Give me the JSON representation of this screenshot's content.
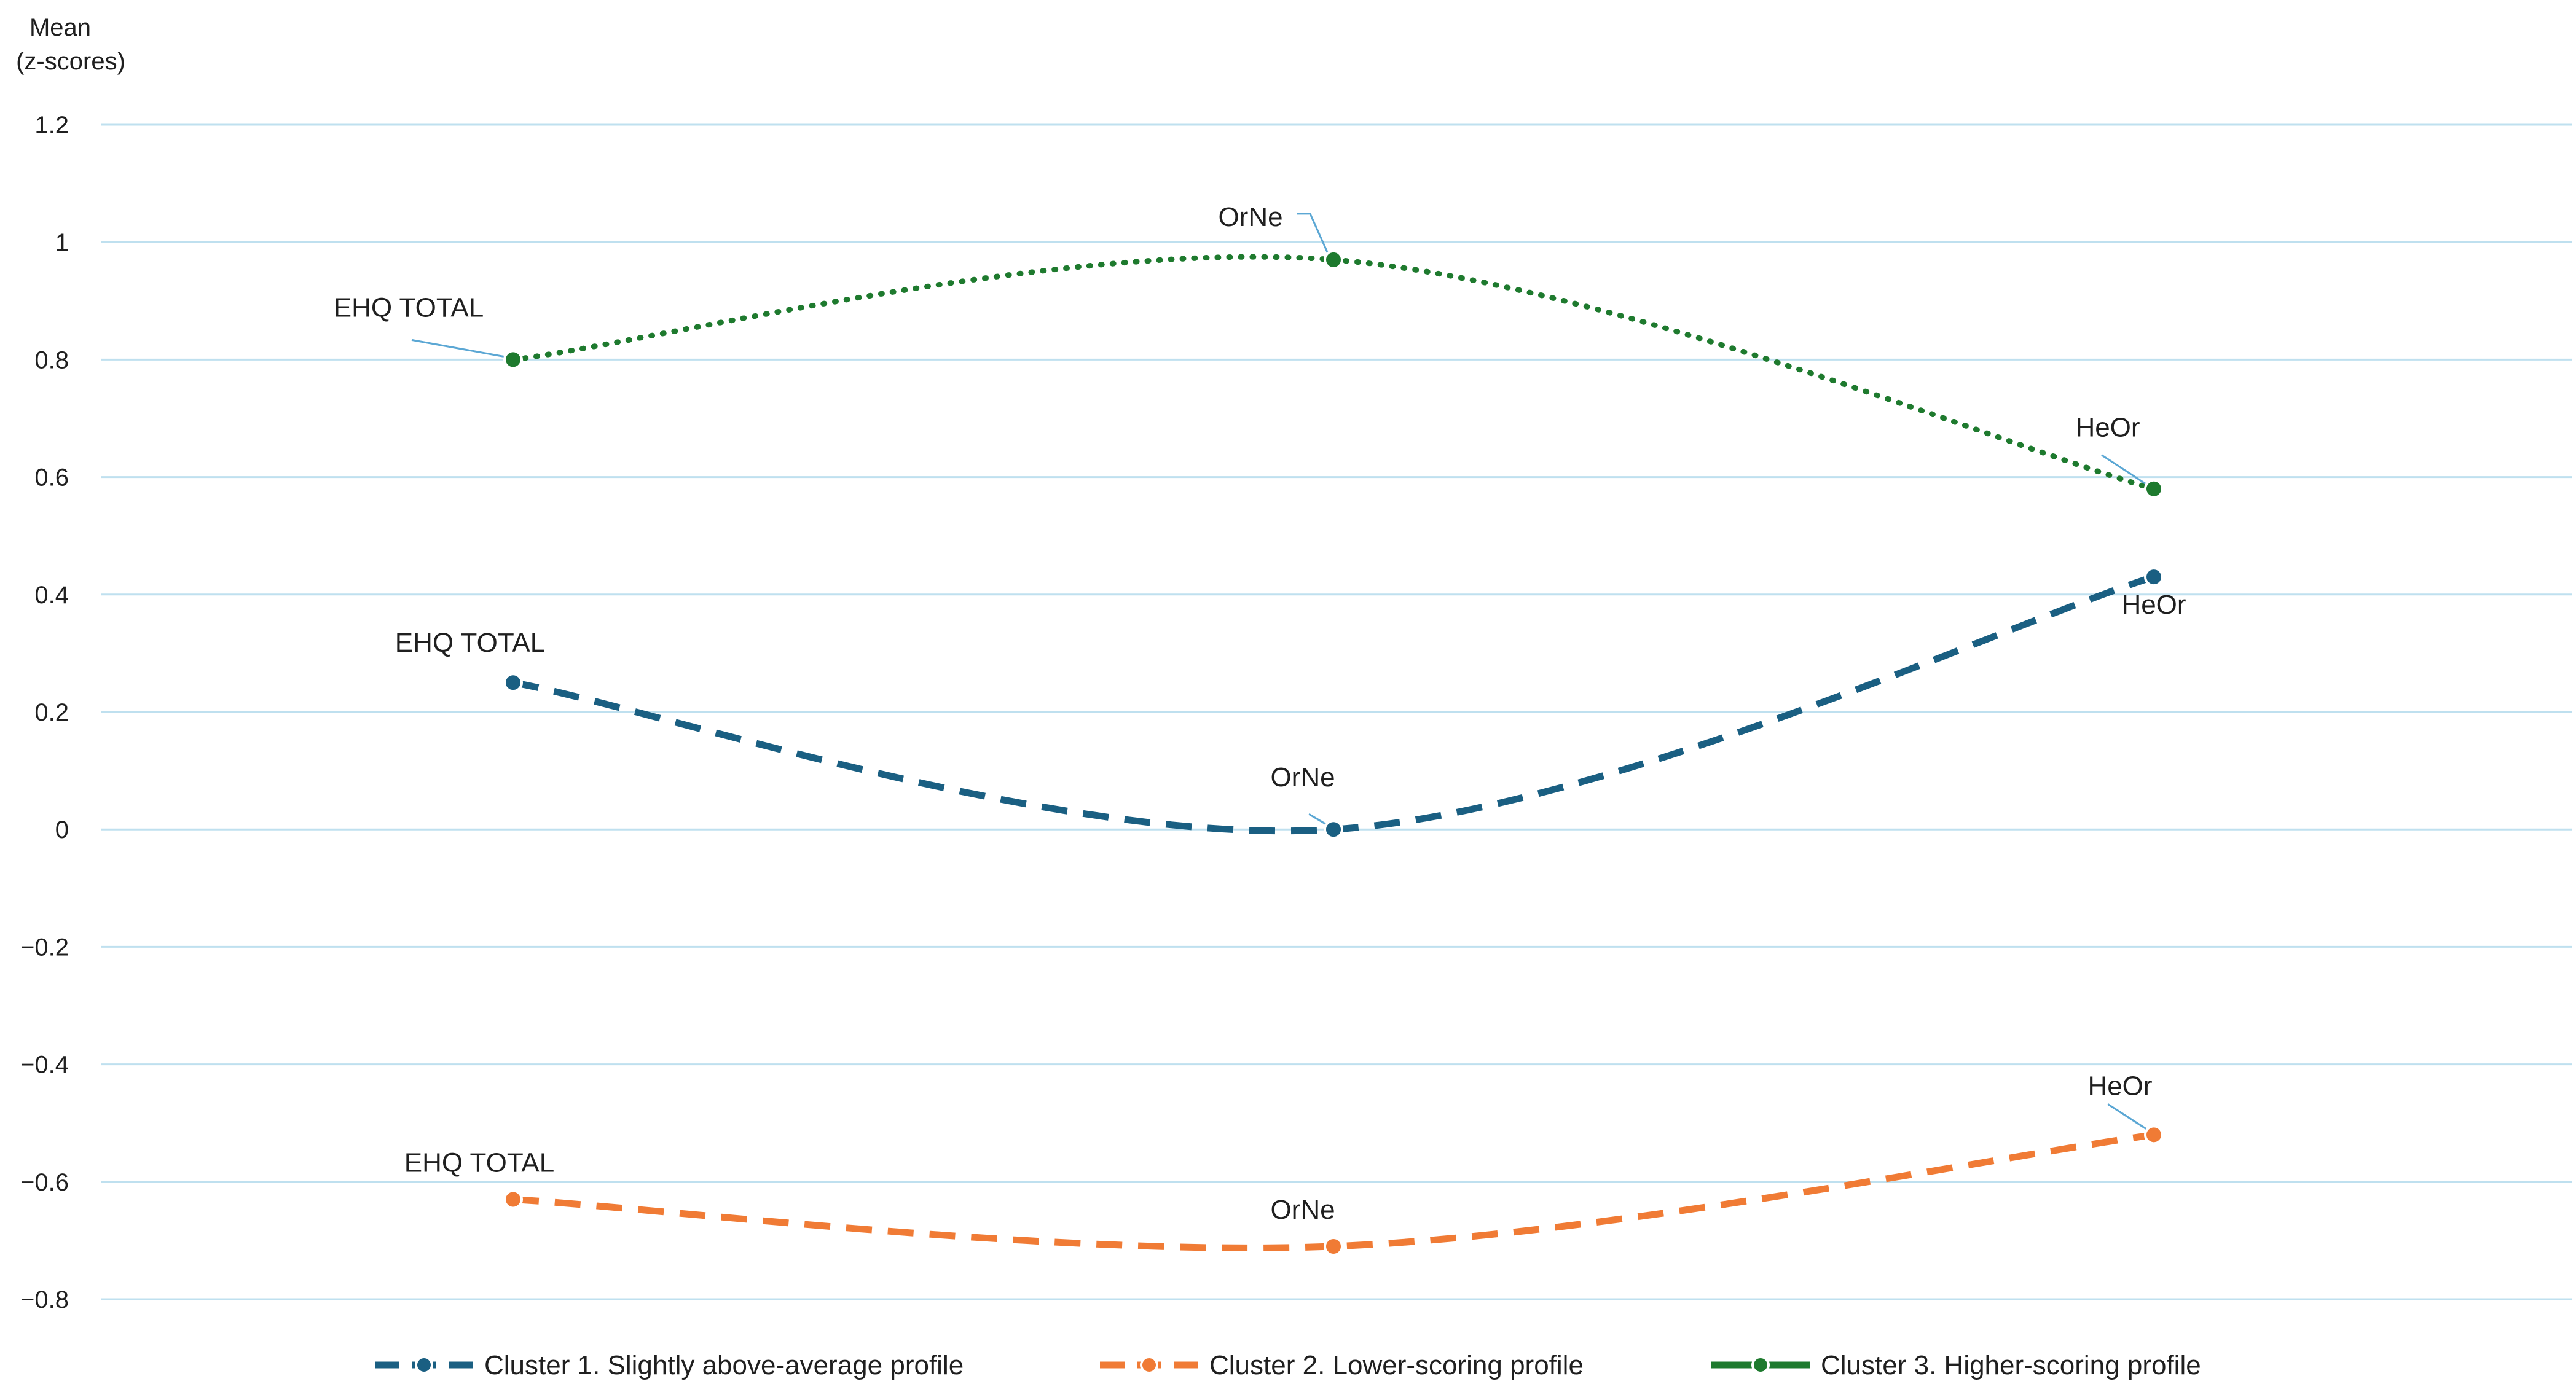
{
  "chart_data": {
    "type": "line",
    "ylabel": [
      "Mean",
      "(z-scores)"
    ],
    "xlabel": "",
    "ylim": [
      -0.8,
      1.2
    ],
    "yticks": [
      1.2,
      1,
      0.8,
      0.6,
      0.4,
      0.2,
      0,
      -0.2,
      -0.4,
      -0.6,
      -0.8
    ],
    "ytick_labels": [
      "1.2",
      "1",
      "0.8",
      "0.6",
      "0.4",
      "0.2",
      "0",
      "−0.2",
      "−0.4",
      "−0.6",
      "−0.8"
    ],
    "grid": true,
    "legend_position": "bottom",
    "categories": [
      "EHQ TOTAL",
      "OrNe",
      "HeOr"
    ],
    "series": [
      {
        "name": "Cluster 1. Slightly above-average profile",
        "values": [
          0.25,
          0.0,
          0.43
        ],
        "color": "#1a5f82",
        "style": "dashed"
      },
      {
        "name": "Cluster 2. Lower-scoring profile",
        "values": [
          -0.63,
          -0.71,
          -0.52
        ],
        "color": "#f07b35",
        "style": "dashed"
      },
      {
        "name": "Cluster 3. Higher-scoring profile",
        "values": [
          0.8,
          0.97,
          0.58
        ],
        "color": "#1e7a2e",
        "style": "dotted"
      }
    ],
    "grid_color": "#bfe0ef",
    "leader_color": "#5ba7d4"
  }
}
